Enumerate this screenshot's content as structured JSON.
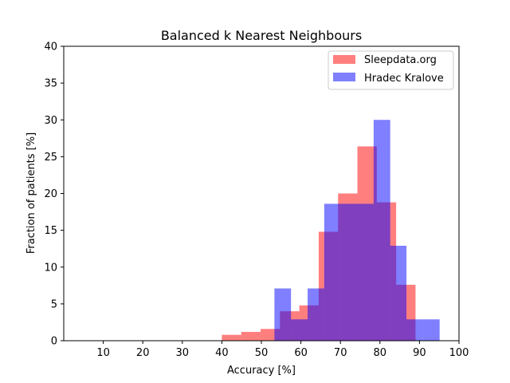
{
  "chart_data": {
    "type": "bar",
    "title": "Balanced k Nearest Neighbours",
    "xlabel": "Accuracy [%]",
    "ylabel": "Fraction of patients [%]",
    "xlim": [
      0,
      100
    ],
    "ylim": [
      0,
      40
    ],
    "xticks": [
      10,
      20,
      30,
      40,
      50,
      60,
      70,
      80,
      90,
      100
    ],
    "yticks": [
      0,
      5,
      10,
      15,
      20,
      25,
      30,
      35,
      40
    ],
    "grid": false,
    "legend_position": "top-right",
    "series": [
      {
        "name": "Sleepdata.org",
        "color": "#ff0000",
        "opacity": 0.5,
        "bins": [
          {
            "x0": 40.0,
            "x1": 44.9,
            "value": 0.8
          },
          {
            "x0": 44.9,
            "x1": 49.8,
            "value": 1.2
          },
          {
            "x0": 49.8,
            "x1": 54.7,
            "value": 1.6
          },
          {
            "x0": 54.7,
            "x1": 59.6,
            "value": 4.0
          },
          {
            "x0": 59.6,
            "x1": 64.5,
            "value": 4.8
          },
          {
            "x0": 64.5,
            "x1": 69.4,
            "value": 14.8
          },
          {
            "x0": 69.4,
            "x1": 74.3,
            "value": 20.0
          },
          {
            "x0": 74.3,
            "x1": 79.2,
            "value": 26.4
          },
          {
            "x0": 79.2,
            "x1": 84.1,
            "value": 18.8
          },
          {
            "x0": 84.1,
            "x1": 89.0,
            "value": 7.6
          }
        ]
      },
      {
        "name": "Hradec Kralove",
        "color": "#0000ff",
        "opacity": 0.5,
        "bins": [
          {
            "x0": 53.3,
            "x1": 57.5,
            "value": 7.1
          },
          {
            "x0": 57.5,
            "x1": 61.7,
            "value": 2.9
          },
          {
            "x0": 61.7,
            "x1": 65.9,
            "value": 7.1
          },
          {
            "x0": 65.9,
            "x1": 70.0,
            "value": 18.6
          },
          {
            "x0": 70.0,
            "x1": 74.2,
            "value": 18.6
          },
          {
            "x0": 74.2,
            "x1": 78.4,
            "value": 18.6
          },
          {
            "x0": 78.4,
            "x1": 82.6,
            "value": 30.0
          },
          {
            "x0": 82.6,
            "x1": 86.7,
            "value": 12.9
          },
          {
            "x0": 86.7,
            "x1": 90.9,
            "value": 2.9
          },
          {
            "x0": 90.9,
            "x1": 95.1,
            "value": 2.9
          }
        ]
      }
    ]
  }
}
